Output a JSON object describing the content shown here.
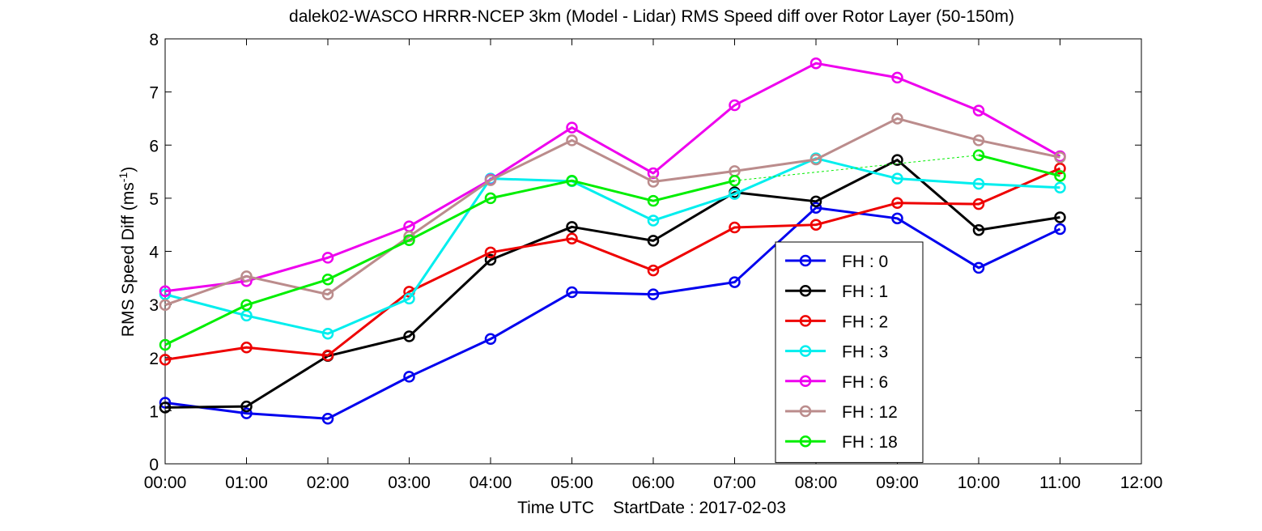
{
  "chart_data": {
    "type": "line",
    "title": "dalek02-WASCO HRRR-NCEP 3km (Model - Lidar) RMS Speed diff over Rotor Layer (50-150m)",
    "xlabel": "Time UTC    StartDate : 2017-02-03",
    "ylabel": "RMS Speed Diff (ms",
    "ylabel_sup": "-1",
    "ylabel_end": ")",
    "xlim": [
      0,
      12
    ],
    "ylim": [
      0,
      8
    ],
    "x_ticks": [
      0,
      1,
      2,
      3,
      4,
      5,
      6,
      7,
      8,
      9,
      10,
      11,
      12
    ],
    "x_tick_labels": [
      "00:00",
      "01:00",
      "02:00",
      "03:00",
      "04:00",
      "05:00",
      "06:00",
      "07:00",
      "08:00",
      "09:00",
      "10:00",
      "11:00",
      "12:00"
    ],
    "y_ticks": [
      0,
      1,
      2,
      3,
      4,
      5,
      6,
      7,
      8
    ],
    "y_tick_labels": [
      "0",
      "1",
      "2",
      "3",
      "4",
      "5",
      "6",
      "7",
      "8"
    ],
    "grid": false,
    "legend_position": "lower-right",
    "x": [
      0,
      1,
      2,
      3,
      4,
      5,
      6,
      7,
      8,
      9,
      10,
      11
    ],
    "series": [
      {
        "name": "FH : 0",
        "color": "#0000ee",
        "values": [
          1.15,
          0.95,
          0.85,
          1.64,
          2.35,
          3.23,
          3.19,
          3.42,
          4.82,
          4.62,
          3.69,
          4.42
        ]
      },
      {
        "name": "FH : 1",
        "color": "#000000",
        "values": [
          1.06,
          1.08,
          2.03,
          2.4,
          3.84,
          4.46,
          4.2,
          5.11,
          4.94,
          5.72,
          4.4,
          4.64
        ]
      },
      {
        "name": "FH : 2",
        "color": "#ee0000",
        "values": [
          1.96,
          2.19,
          2.04,
          3.24,
          3.98,
          4.24,
          3.64,
          4.45,
          4.5,
          4.91,
          4.89,
          5.56
        ]
      },
      {
        "name": "FH : 3",
        "color": "#00eeee",
        "values": [
          3.19,
          2.79,
          2.45,
          3.11,
          5.37,
          5.32,
          4.58,
          5.08,
          5.75,
          5.37,
          5.27,
          5.2
        ]
      },
      {
        "name": "FH : 6",
        "color": "#ee00ee",
        "values": [
          3.25,
          3.44,
          3.88,
          4.47,
          5.35,
          6.33,
          5.47,
          6.75,
          7.54,
          7.27,
          6.65,
          5.79
        ]
      },
      {
        "name": "FH : 12",
        "color": "#bb8c8c",
        "values": [
          2.99,
          3.53,
          3.19,
          4.28,
          5.34,
          6.09,
          5.31,
          5.51,
          5.73,
          6.5,
          6.09,
          5.77
        ]
      },
      {
        "name": "FH : 18",
        "color": "#00ee00",
        "values": [
          2.24,
          2.99,
          3.47,
          4.21,
          5.0,
          5.33,
          4.95,
          5.33,
          null,
          null,
          5.81,
          5.42
        ]
      }
    ],
    "dashed_gap_series": "FH : 18"
  }
}
